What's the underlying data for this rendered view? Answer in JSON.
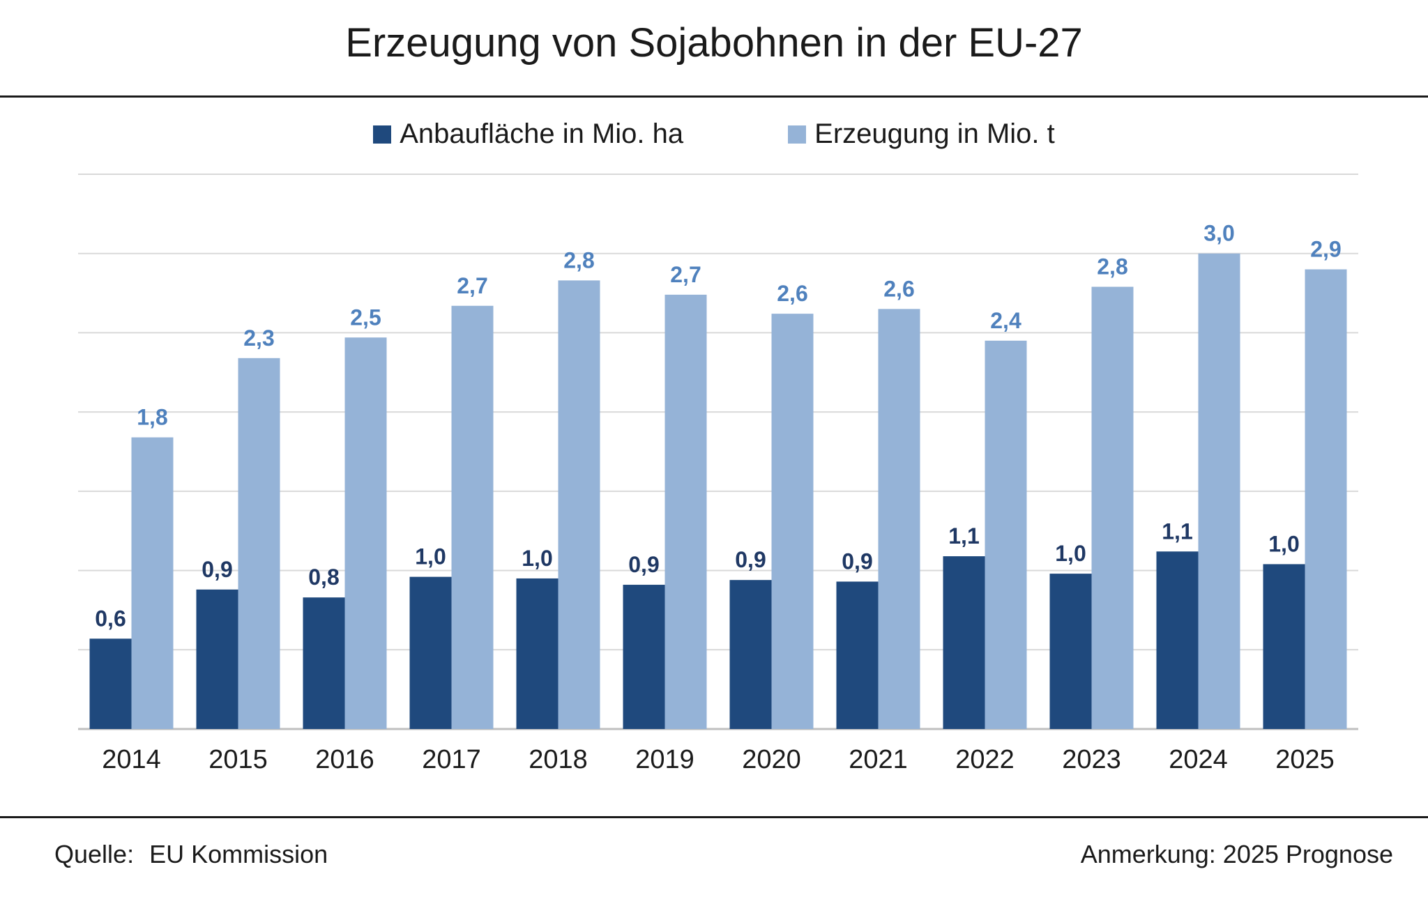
{
  "title": "Erzeugung von Sojabohnen in der EU-27",
  "legend": [
    {
      "label": "Anbaufläche in Mio. ha",
      "color": "#1f497d"
    },
    {
      "label": "Erzeugung in Mio. t",
      "color": "#95b3d7"
    }
  ],
  "footer": {
    "source_label": "Quelle:",
    "source_value": "EU Kommission",
    "note": "Anmerkung: 2025 Prognose"
  },
  "chart_data": {
    "type": "bar",
    "categories": [
      "2014",
      "2015",
      "2016",
      "2017",
      "2018",
      "2019",
      "2020",
      "2021",
      "2022",
      "2023",
      "2024",
      "2025"
    ],
    "series": [
      {
        "name": "Anbaufläche in Mio. ha",
        "color": "#1f497d",
        "label_color": "#1f3864",
        "values": [
          0.57,
          0.88,
          0.83,
          0.96,
          0.95,
          0.91,
          0.94,
          0.93,
          1.09,
          0.98,
          1.12,
          1.04
        ],
        "labels": [
          "0,6",
          "0,9",
          "0,8",
          "1,0",
          "1,0",
          "0,9",
          "0,9",
          "0,9",
          "1,1",
          "1,0",
          "1,1",
          "1,0"
        ]
      },
      {
        "name": "Erzeugung in Mio. t",
        "color": "#95b3d7",
        "label_color": "#4f81bd",
        "values": [
          1.84,
          2.34,
          2.47,
          2.67,
          2.83,
          2.74,
          2.62,
          2.65,
          2.45,
          2.79,
          3.0,
          2.9
        ],
        "labels": [
          "1,8",
          "2,3",
          "2,5",
          "2,7",
          "2,8",
          "2,7",
          "2,6",
          "2,6",
          "2,4",
          "2,8",
          "3,0",
          "2,9"
        ]
      }
    ],
    "ylim": [
      0,
      3.5
    ],
    "gridlines": [
      0,
      0.5,
      1.0,
      1.5,
      2.0,
      2.5,
      3.0,
      3.5
    ],
    "y_ticks_shown": false,
    "grid": true,
    "legend_position": "top-center"
  }
}
